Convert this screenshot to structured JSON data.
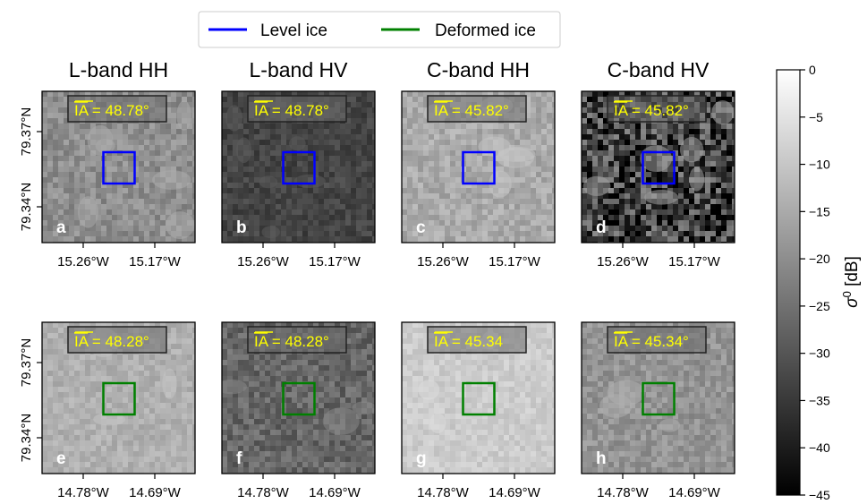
{
  "chart_data": {
    "type": "heatmap",
    "legend": {
      "position": "top-center",
      "entries": [
        {
          "label": "Level ice",
          "color": "#0000ff"
        },
        {
          "label": "Deformed ice",
          "color": "#008000"
        }
      ]
    },
    "colorbar": {
      "label_base": "σ",
      "label_sup": "0",
      "label_unit": " [dB]",
      "range": [
        -45,
        0
      ],
      "ticks": [
        "0",
        "−5",
        "−10",
        "−15",
        "−20",
        "−25",
        "−30",
        "−35",
        "−40",
        "−45"
      ],
      "colormap": "gray"
    },
    "rows": [
      {
        "box_color": "#0000ff",
        "y_ticks": [
          "79.37°N",
          "79.34°N"
        ],
        "x_ticks": [
          "15.26°W",
          "15.17°W"
        ],
        "panels": [
          {
            "title": "L-band HH",
            "letter": "a",
            "ia_label": "IA",
            "ia_value": " = 48.78°",
            "mean_db": -20,
            "variability": 0.09
          },
          {
            "title": "L-band HV",
            "letter": "b",
            "ia_label": "IA",
            "ia_value": " = 48.78°",
            "mean_db": -33,
            "variability": 0.07
          },
          {
            "title": "C-band HH",
            "letter": "c",
            "ia_label": "IA",
            "ia_value": " = 45.82°",
            "mean_db": -15,
            "variability": 0.08
          },
          {
            "title": "C-band HV",
            "letter": "d",
            "ia_label": "IA",
            "ia_value": " = 45.82°",
            "mean_db": -34,
            "variability": 0.3
          }
        ]
      },
      {
        "box_color": "#008000",
        "y_ticks": [
          "79.37°N",
          "79.34°N"
        ],
        "x_ticks": [
          "14.78°W",
          "14.69°W"
        ],
        "panels": [
          {
            "title": "",
            "letter": "e",
            "ia_label": "IA",
            "ia_value": " = 48.28°",
            "mean_db": -14,
            "variability": 0.06
          },
          {
            "title": "",
            "letter": "f",
            "ia_label": "IA",
            "ia_value": " = 48.28°",
            "mean_db": -27,
            "variability": 0.1
          },
          {
            "title": "",
            "letter": "g",
            "ia_label": "IA",
            "ia_value": " = 45.34",
            "mean_db": -9,
            "variability": 0.05
          },
          {
            "title": "",
            "letter": "h",
            "ia_label": "IA",
            "ia_value": " = 45.34°",
            "mean_db": -19,
            "variability": 0.08
          }
        ]
      }
    ]
  }
}
